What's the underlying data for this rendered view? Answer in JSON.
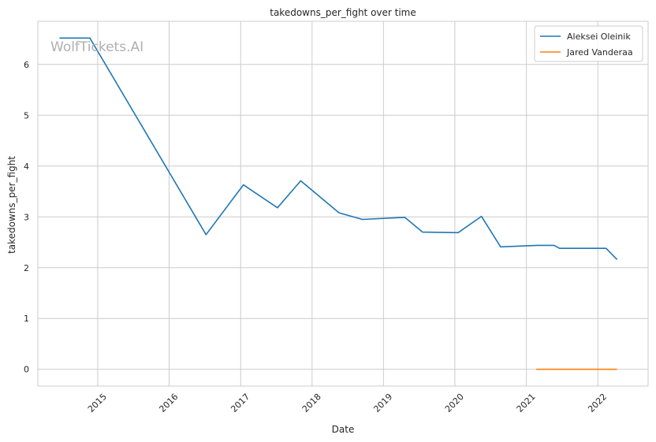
{
  "chart_data": {
    "type": "line",
    "title": "takedowns_per_fight over time",
    "xlabel": "Date",
    "ylabel": "takedowns_per_fight",
    "watermark": "WolfTickets.AI",
    "x_ticks": [
      "2015",
      "2016",
      "2017",
      "2018",
      "2019",
      "2020",
      "2021",
      "2022"
    ],
    "y_ticks": [
      0,
      1,
      2,
      3,
      4,
      5,
      6
    ],
    "xlim": [
      "2014-03-01",
      "2022-09-15"
    ],
    "ylim": [
      -0.33,
      6.85
    ],
    "grid": true,
    "legend_position": "top-right",
    "series": [
      {
        "name": "Aleksei Oleinik",
        "color": "#1f77b4",
        "points": [
          [
            "2014-06-20",
            6.52
          ],
          [
            "2014-11-22",
            6.52
          ],
          [
            "2016-07-08",
            2.65
          ],
          [
            "2017-01-15",
            3.63
          ],
          [
            "2017-07-08",
            3.18
          ],
          [
            "2017-11-04",
            3.71
          ],
          [
            "2018-05-19",
            3.08
          ],
          [
            "2018-09-15",
            2.95
          ],
          [
            "2019-04-20",
            2.99
          ],
          [
            "2019-07-20",
            2.7
          ],
          [
            "2020-01-18",
            2.69
          ],
          [
            "2020-05-16",
            3.01
          ],
          [
            "2020-08-22",
            2.41
          ],
          [
            "2021-02-27",
            2.44
          ],
          [
            "2021-05-22",
            2.44
          ],
          [
            "2021-06-19",
            2.38
          ],
          [
            "2022-02-12",
            2.38
          ],
          [
            "2022-04-09",
            2.16
          ]
        ]
      },
      {
        "name": "Jared Vanderaa",
        "color": "#ff7f0e",
        "points": [
          [
            "2021-02-20",
            0.0
          ],
          [
            "2022-04-09",
            0.0
          ]
        ]
      }
    ]
  }
}
